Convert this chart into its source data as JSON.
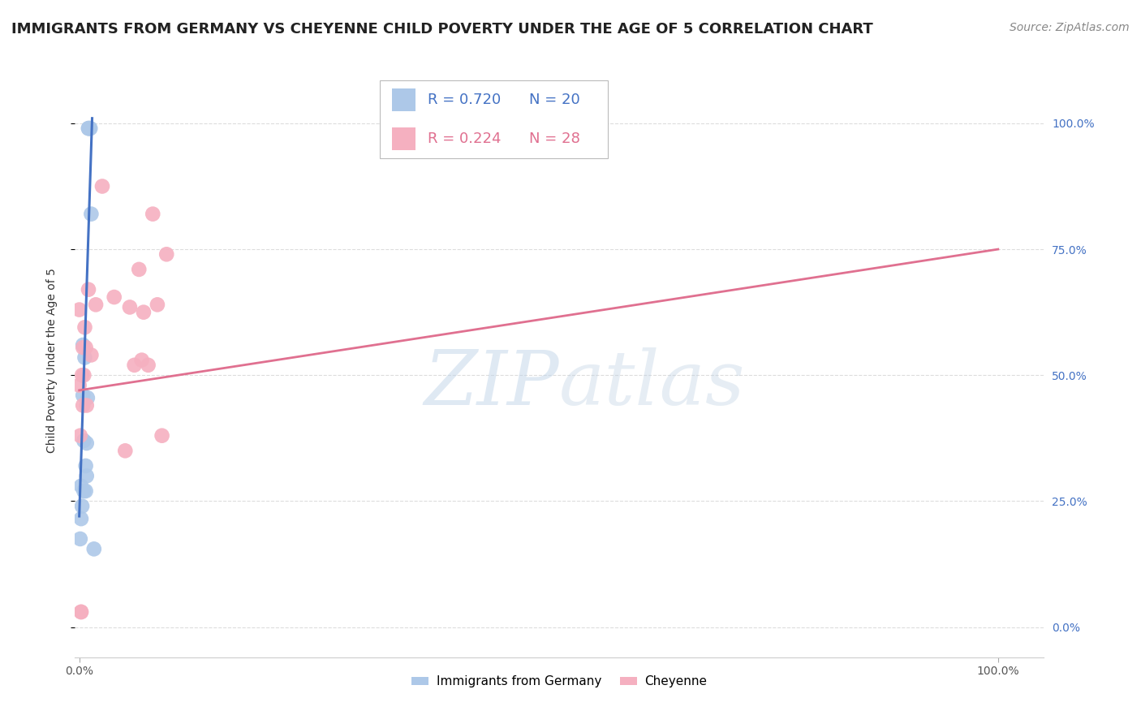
{
  "title": "IMMIGRANTS FROM GERMANY VS CHEYENNE CHILD POVERTY UNDER THE AGE OF 5 CORRELATION CHART",
  "source": "Source: ZipAtlas.com",
  "ylabel": "Child Poverty Under the Age of 5",
  "ytick_labels": [
    "0.0%",
    "25.0%",
    "50.0%",
    "75.0%",
    "100.0%"
  ],
  "ytick_values": [
    0.0,
    0.25,
    0.5,
    0.75,
    1.0
  ],
  "xtick_labels": [
    "0.0%",
    "100.0%"
  ],
  "xtick_values": [
    0.0,
    1.0
  ],
  "blue_R": 0.72,
  "blue_N": 20,
  "pink_R": 0.224,
  "pink_N": 28,
  "blue_color": "#adc8e8",
  "pink_color": "#f5b0c0",
  "blue_line_color": "#4472c4",
  "pink_line_color": "#e07090",
  "legend_blue_label": "Immigrants from Germany",
  "legend_pink_label": "Cheyenne",
  "watermark_zip": "ZIP",
  "watermark_atlas": "atlas",
  "blue_scatter_x": [
    0.001,
    0.002,
    0.002,
    0.003,
    0.004,
    0.004,
    0.005,
    0.005,
    0.006,
    0.007,
    0.007,
    0.008,
    0.008,
    0.009,
    0.01,
    0.01,
    0.011,
    0.012,
    0.013,
    0.016
  ],
  "blue_scatter_y": [
    0.175,
    0.215,
    0.28,
    0.24,
    0.56,
    0.46,
    0.27,
    0.37,
    0.535,
    0.27,
    0.32,
    0.3,
    0.365,
    0.455,
    0.99,
    0.99,
    0.99,
    0.99,
    0.82,
    0.155
  ],
  "pink_scatter_x": [
    0.0,
    0.0,
    0.001,
    0.002,
    0.002,
    0.003,
    0.004,
    0.004,
    0.005,
    0.006,
    0.007,
    0.008,
    0.01,
    0.013,
    0.018,
    0.025,
    0.038,
    0.05,
    0.055,
    0.06,
    0.065,
    0.068,
    0.07,
    0.075,
    0.08,
    0.085,
    0.09,
    0.095
  ],
  "pink_scatter_y": [
    0.48,
    0.63,
    0.38,
    0.03,
    0.03,
    0.5,
    0.555,
    0.44,
    0.5,
    0.595,
    0.555,
    0.44,
    0.67,
    0.54,
    0.64,
    0.875,
    0.655,
    0.35,
    0.635,
    0.52,
    0.71,
    0.53,
    0.625,
    0.52,
    0.82,
    0.64,
    0.38,
    0.74
  ],
  "blue_line_x": [
    0.0,
    0.014
  ],
  "blue_line_y": [
    0.22,
    1.01
  ],
  "pink_line_x": [
    0.0,
    1.0
  ],
  "pink_line_y": [
    0.47,
    0.75
  ],
  "grid_color": "#dddddd",
  "background_color": "#ffffff",
  "right_axis_color": "#4472c4",
  "xlim": [
    -0.005,
    1.05
  ],
  "ylim": [
    -0.06,
    1.12
  ],
  "title_fontsize": 13,
  "label_fontsize": 10,
  "tick_fontsize": 10,
  "source_fontsize": 10
}
